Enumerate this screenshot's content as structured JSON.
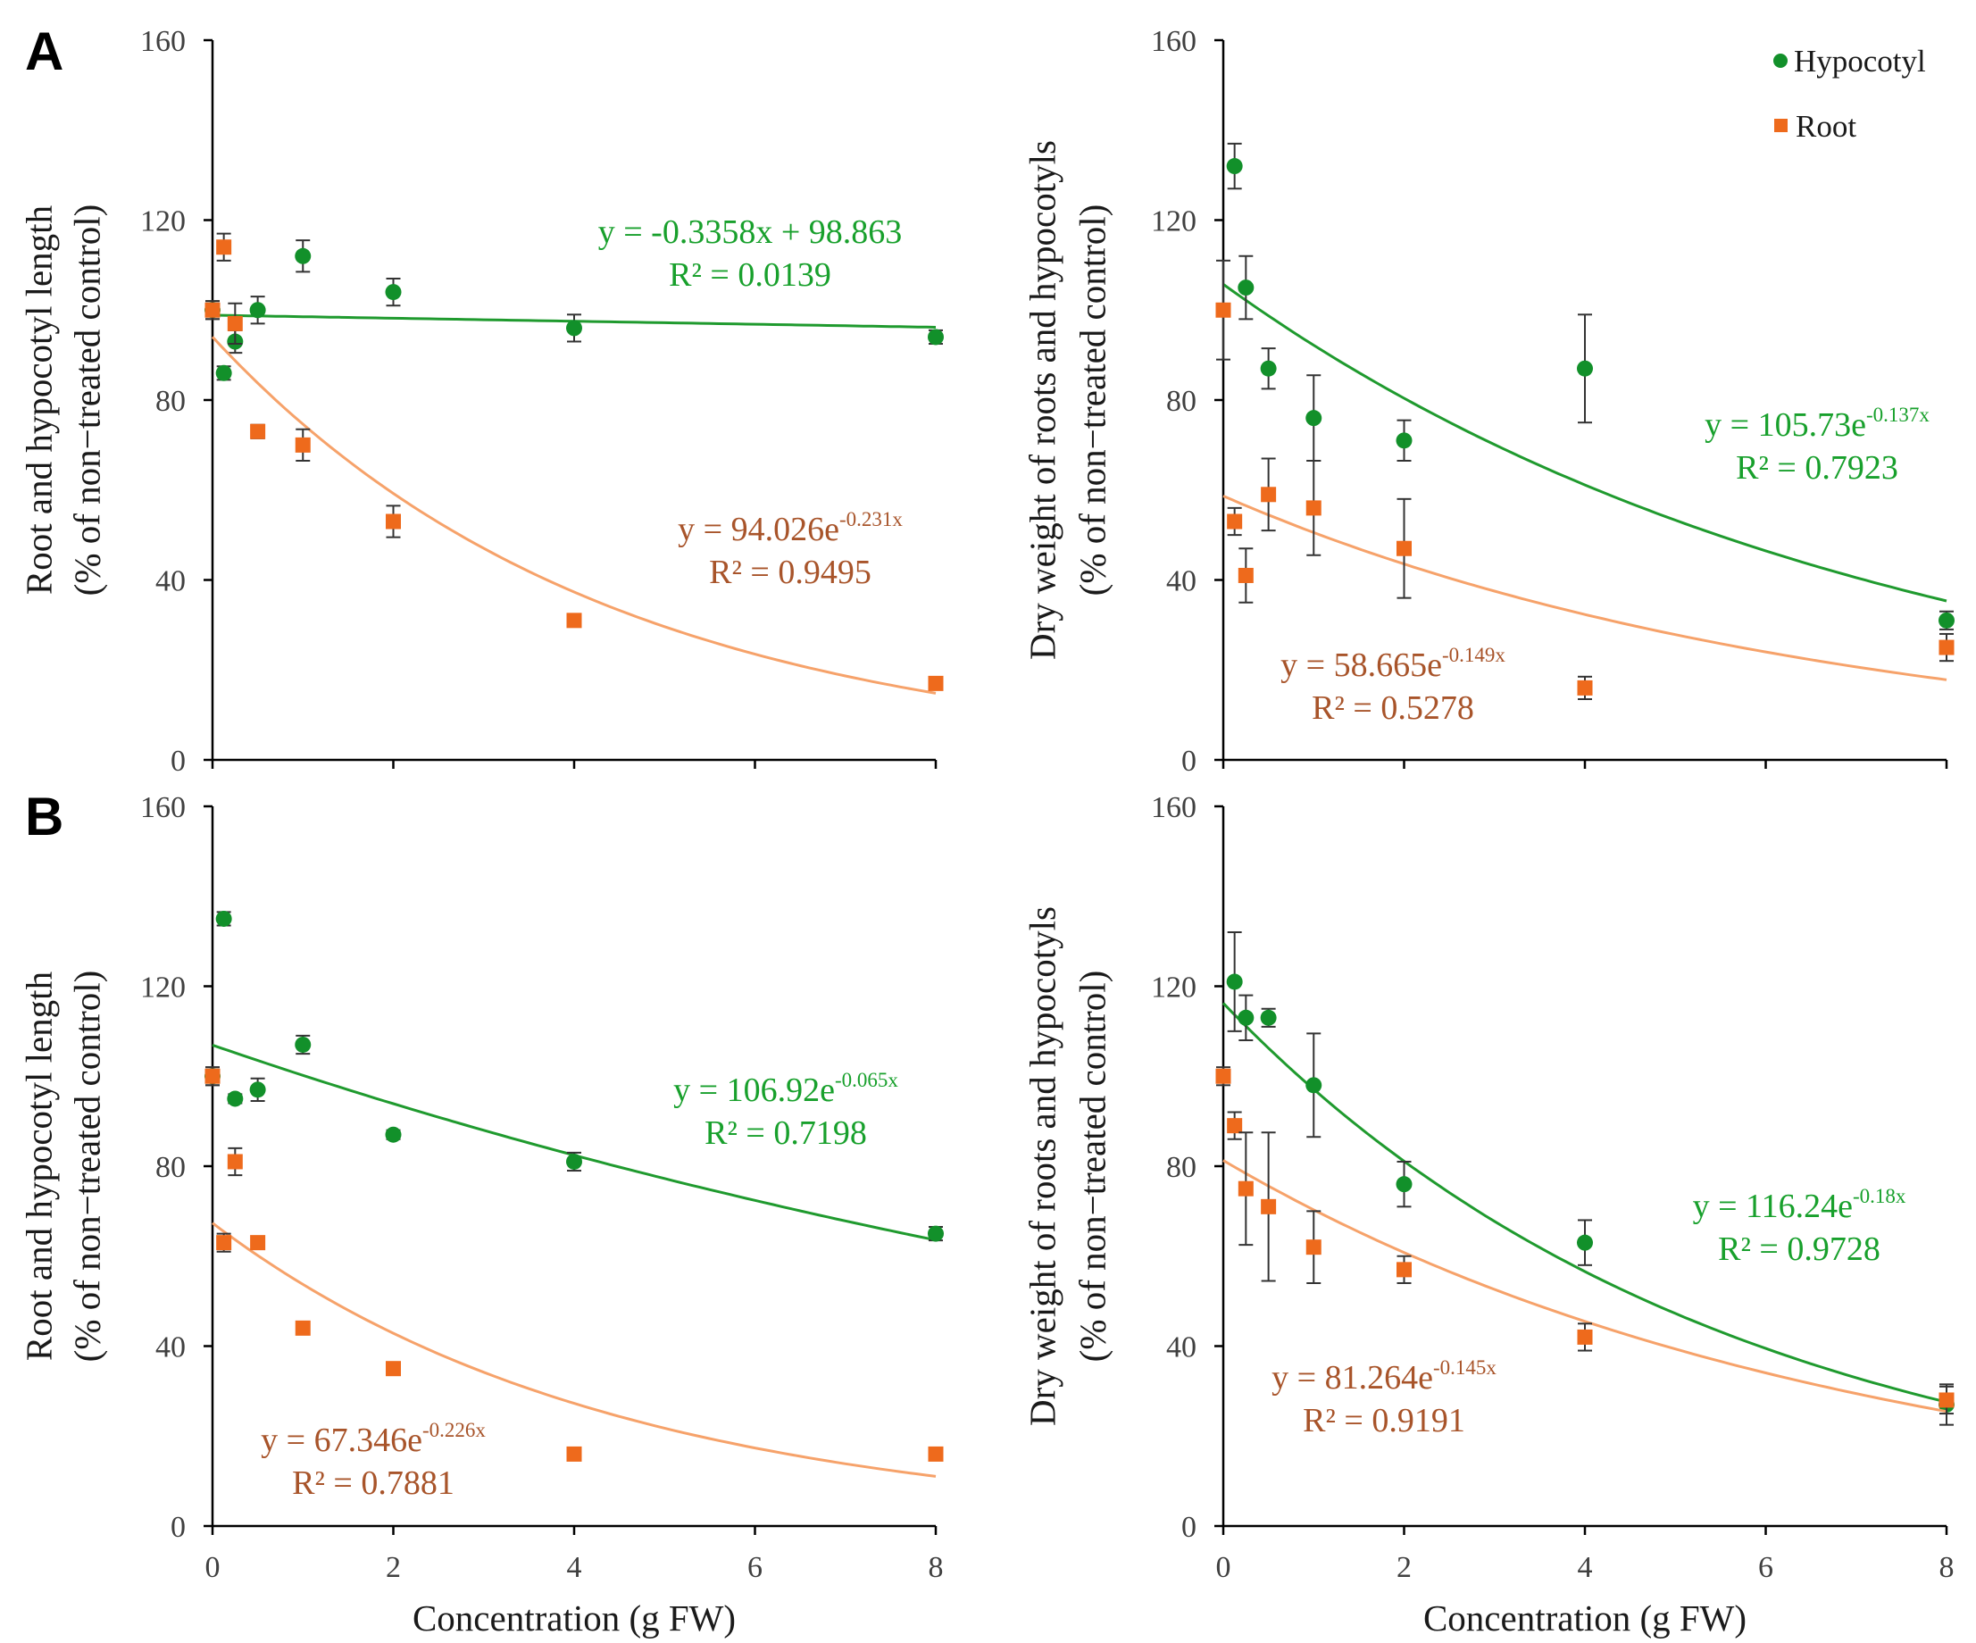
{
  "colors": {
    "hypocotyl": "#12902a",
    "root": "#ee6a1c",
    "hypocotyl_fit": "#1f9a2e",
    "root_fit": "#f6a26a",
    "hypocotyl_eq": "#18a02c",
    "root_eq": "#a8542a",
    "axis": "#000000",
    "error_bar": "#333333"
  },
  "legend": {
    "hypocotyl": "Hypocotyl",
    "root": "Root"
  },
  "panel_labels": [
    "A",
    "B"
  ],
  "x_axis_title": "Concentration (g FW)",
  "chart_data": [
    {
      "id": "A-length",
      "type": "scatter",
      "panel": "A",
      "ylabel_line1": "Root and hypocotyl length",
      "ylabel_line2": "(% of non−treated control)",
      "xlabel": "",
      "xlim": [
        0,
        8
      ],
      "ylim": [
        0,
        160
      ],
      "xticks": [
        "0",
        "2",
        "4",
        "6",
        "8"
      ],
      "yticks": [
        "0",
        "40",
        "80",
        "120",
        "160"
      ],
      "show_x_tick_labels": false,
      "series": [
        {
          "name": "Hypocotyl",
          "marker": "circle",
          "x": [
            0,
            0.125,
            0.25,
            0.5,
            1,
            2,
            4,
            8
          ],
          "y": [
            100,
            86,
            93,
            100,
            112,
            104,
            96,
            94
          ],
          "err": [
            2,
            1.5,
            2.5,
            3,
            3.5,
            3,
            3,
            1.5
          ],
          "fit": {
            "kind": "linear",
            "a": 98.863,
            "b": -0.3358
          },
          "eq_line1": "y = -0.3358x + 98.863",
          "eq_sup": "",
          "eq_line2": "R² = 0.0139"
        },
        {
          "name": "Root",
          "marker": "square",
          "x": [
            0,
            0.125,
            0.25,
            0.5,
            1,
            2,
            4,
            8
          ],
          "y": [
            100,
            114,
            97,
            73,
            70,
            53,
            31,
            17
          ],
          "err": [
            2,
            3,
            4.5,
            1.5,
            3.5,
            3.5,
            1,
            1
          ],
          "fit": {
            "kind": "exp",
            "a": 94.026,
            "b": -0.231
          },
          "eq_line1": "y = 94.026e",
          "eq_sup": "-0.231x",
          "eq_line2": "R² = 0.9495"
        }
      ]
    },
    {
      "id": "A-weight",
      "type": "scatter",
      "panel": "A",
      "ylabel_line1": "Dry weight of roots and hypocotyls",
      "ylabel_line2": "(% of non−treated control)",
      "xlabel": "",
      "xlim": [
        0,
        8
      ],
      "ylim": [
        0,
        160
      ],
      "xticks": [
        "0",
        "2",
        "4",
        "6",
        "8"
      ],
      "yticks": [
        "0",
        "40",
        "80",
        "120",
        "160"
      ],
      "show_x_tick_labels": false,
      "series": [
        {
          "name": "Hypocotyl",
          "marker": "circle",
          "x": [
            0.125,
            0.25,
            0.5,
            1,
            2,
            4,
            8
          ],
          "y": [
            132,
            105,
            87,
            76,
            71,
            87,
            31
          ],
          "err": [
            5,
            7,
            4.5,
            9.5,
            4.5,
            12,
            2
          ],
          "fit": {
            "kind": "exp",
            "a": 105.73,
            "b": -0.137
          },
          "eq_line1": "y = 105.73e",
          "eq_sup": "-0.137x",
          "eq_line2": "R² = 0.7923"
        },
        {
          "name": "Root",
          "marker": "square",
          "x": [
            0,
            0.125,
            0.25,
            0.5,
            1,
            2,
            4,
            8
          ],
          "y": [
            100,
            53,
            41,
            59,
            56,
            47,
            16,
            25
          ],
          "err": [
            11,
            3,
            6,
            8,
            10.5,
            11,
            2.5,
            3
          ],
          "fit": {
            "kind": "exp",
            "a": 58.665,
            "b": -0.149
          },
          "eq_line1": "y = 58.665e",
          "eq_sup": "-0.149x",
          "eq_line2": "R² = 0.5278"
        }
      ]
    },
    {
      "id": "B-length",
      "type": "scatter",
      "panel": "B",
      "ylabel_line1": "Root and hypocotyl length",
      "ylabel_line2": "(% of non−treated control)",
      "xlabel": "Concentration (g FW)",
      "xlim": [
        0,
        8
      ],
      "ylim": [
        0,
        160
      ],
      "xticks": [
        "0",
        "2",
        "4",
        "6",
        "8"
      ],
      "yticks": [
        "0",
        "40",
        "80",
        "120",
        "160"
      ],
      "show_x_tick_labels": true,
      "series": [
        {
          "name": "Hypocotyl",
          "marker": "circle",
          "x": [
            0,
            0.125,
            0.25,
            0.5,
            1,
            2,
            4,
            8
          ],
          "y": [
            100,
            135,
            95,
            97,
            107,
            87,
            81,
            65
          ],
          "err": [
            2,
            1.5,
            1,
            2.5,
            2,
            1,
            2,
            1.5
          ],
          "fit": {
            "kind": "exp",
            "a": 106.92,
            "b": -0.065
          },
          "eq_line1": "y = 106.92e",
          "eq_sup": "-0.065x",
          "eq_line2": "R² = 0.7198"
        },
        {
          "name": "Root",
          "marker": "square",
          "x": [
            0,
            0.125,
            0.25,
            0.5,
            1,
            2,
            4,
            8
          ],
          "y": [
            100,
            63,
            81,
            63,
            44,
            35,
            16,
            16
          ],
          "err": [
            2,
            2,
            3,
            1,
            1,
            1,
            1,
            1
          ],
          "fit": {
            "kind": "exp",
            "a": 67.346,
            "b": -0.226
          },
          "eq_line1": "y = 67.346e",
          "eq_sup": "-0.226x",
          "eq_line2": "R² = 0.7881"
        }
      ]
    },
    {
      "id": "B-weight",
      "type": "scatter",
      "panel": "B",
      "ylabel_line1": "Dry weight of roots and hypocotyls",
      "ylabel_line2": "(% of non−treated control)",
      "xlabel": "Concentration (g FW)",
      "xlim": [
        0,
        8
      ],
      "ylim": [
        0,
        160
      ],
      "xticks": [
        "0",
        "2",
        "4",
        "6",
        "8"
      ],
      "yticks": [
        "0",
        "40",
        "80",
        "120",
        "160"
      ],
      "show_x_tick_labels": true,
      "series": [
        {
          "name": "Hypocotyl",
          "marker": "circle",
          "x": [
            0.125,
            0.25,
            0.5,
            1,
            2,
            4,
            8
          ],
          "y": [
            121,
            113,
            113,
            98,
            76,
            63,
            27
          ],
          "err": [
            11,
            5,
            2,
            11.5,
            5,
            5,
            4.5
          ],
          "fit": {
            "kind": "exp",
            "a": 116.24,
            "b": -0.18
          },
          "eq_line1": "y = 116.24e",
          "eq_sup": "-0.18x",
          "eq_line2": "R² = 0.9728"
        },
        {
          "name": "Root",
          "marker": "square",
          "x": [
            0,
            0.125,
            0.25,
            0.5,
            1,
            2,
            4,
            8
          ],
          "y": [
            100,
            89,
            75,
            71,
            62,
            57,
            42,
            28
          ],
          "err": [
            2,
            3,
            12.5,
            16.5,
            8,
            3,
            3,
            3
          ],
          "fit": {
            "kind": "exp",
            "a": 81.264,
            "b": -0.145
          },
          "eq_line1": "y = 81.264e",
          "eq_sup": "-0.145x",
          "eq_line2": "R² = 0.9191"
        }
      ]
    }
  ]
}
